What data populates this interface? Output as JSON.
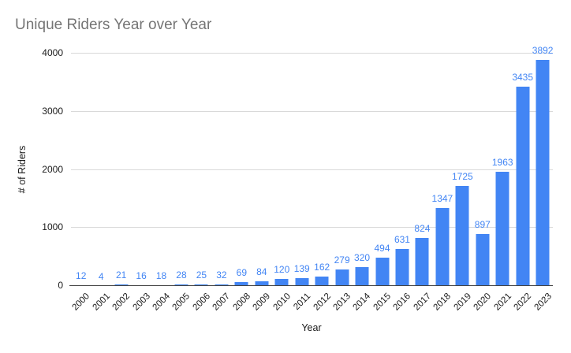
{
  "chart_data": {
    "type": "bar",
    "title": "Unique Riders Year over Year",
    "xlabel": "Year",
    "ylabel": "# of Riders",
    "categories": [
      "2000",
      "2001",
      "2002",
      "2003",
      "2004",
      "2005",
      "2006",
      "2007",
      "2008",
      "2009",
      "2010",
      "2011",
      "2012",
      "2013",
      "2014",
      "2015",
      "2016",
      "2017",
      "2018",
      "2019",
      "2020",
      "2021",
      "2022",
      "2023"
    ],
    "values": [
      12,
      4,
      21,
      16,
      18,
      28,
      25,
      32,
      69,
      84,
      120,
      139,
      162,
      279,
      320,
      494,
      631,
      824,
      1347,
      1725,
      897,
      1963,
      3435,
      3892
    ],
    "ylim": [
      0,
      4000
    ],
    "yticks": [
      0,
      1000,
      2000,
      3000,
      4000
    ],
    "grid": true,
    "legend_position": "none",
    "bar_color": "#4285f4",
    "data_label_color": "#4285f4",
    "title_color": "#757575",
    "axis_text_color": "#1a1a1a",
    "gridline_color": "#d9d9d9",
    "data_labels_shown": true
  }
}
